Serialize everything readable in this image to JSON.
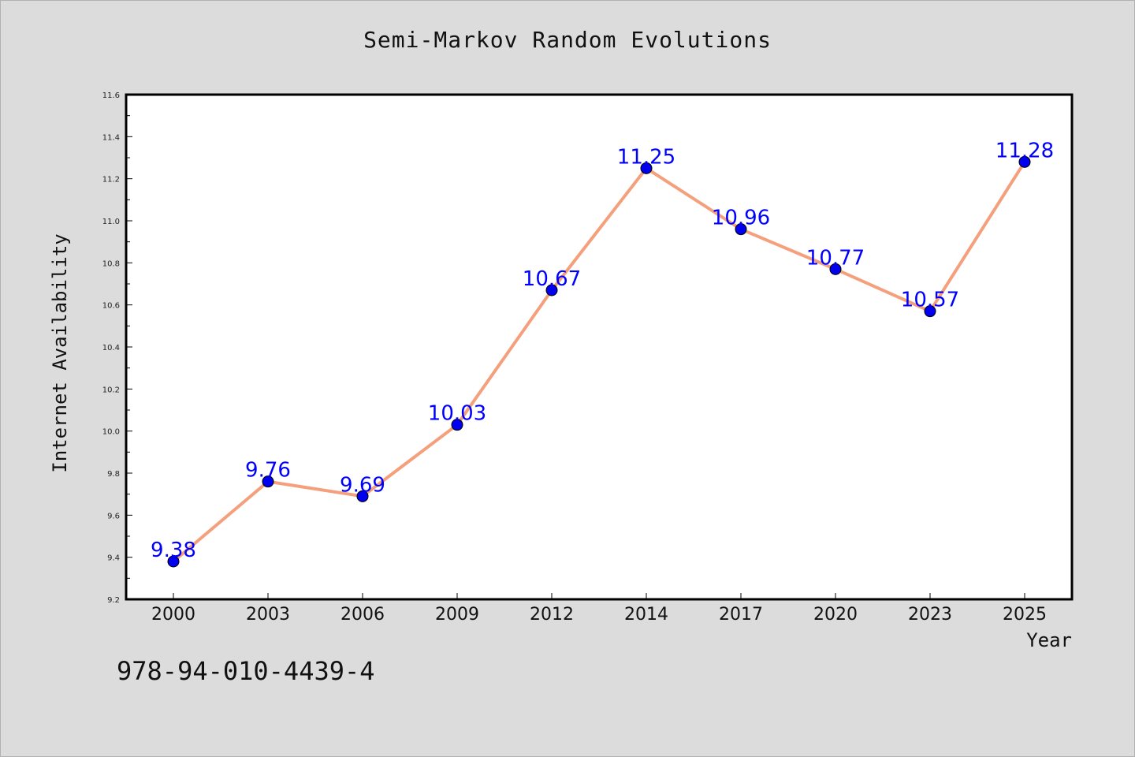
{
  "chart_data": {
    "type": "line",
    "title": "Semi-Markov Random Evolutions",
    "xlabel": "Year",
    "ylabel": "Internet Availability",
    "categories": [
      "2000",
      "2003",
      "2006",
      "2009",
      "2012",
      "2014",
      "2017",
      "2020",
      "2023",
      "2025"
    ],
    "series": [
      {
        "values": [
          9.38,
          9.76,
          9.69,
          10.03,
          10.67,
          11.25,
          10.96,
          10.77,
          10.57,
          11.28
        ],
        "data_labels": [
          "9.38",
          "9.76",
          "9.69",
          "10.03",
          "10.67",
          "11.25",
          "10.96",
          "10.77",
          "10.57",
          "11.28"
        ],
        "line_color": "#f4a07c",
        "marker_color": "#0000ee",
        "label_color": "#0000ff"
      }
    ],
    "ylim": [
      9.2,
      11.6
    ],
    "y_ticks": [
      "9.2",
      "9.4",
      "9.6",
      "9.8",
      "10.0",
      "10.2",
      "10.4",
      "10.6",
      "10.8",
      "11.0",
      "11.2",
      "11.4",
      "11.6"
    ],
    "grid": false,
    "legend": "none",
    "background_color": "#dcdcdc",
    "plot_background_color": "#ffffff"
  },
  "footer": {
    "isbn": "978-94-010-4439-4"
  }
}
